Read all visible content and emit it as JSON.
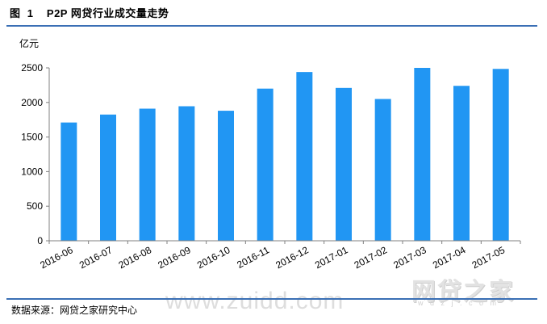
{
  "header": {
    "figure_title": "图  1    P2P 网贷行业成交量走势"
  },
  "footer": {
    "source": "数据来源：网贷之家研究中心"
  },
  "watermark": {
    "text": "www.zuidd.com"
  },
  "logo": {
    "main": "网贷之家",
    "sub": "w d z j . c o m"
  },
  "colors": {
    "bar": "#2196f3",
    "rule": "#3a6fb5",
    "axis": "#808080"
  },
  "chart_data": {
    "type": "bar",
    "title": "",
    "xlabel": "",
    "ylabel": "亿元",
    "categories": [
      "2016-06",
      "2016-07",
      "2016-08",
      "2016-09",
      "2016-10",
      "2016-11",
      "2016-12",
      "2017-01",
      "2017-02",
      "2017-03",
      "2017-04",
      "2017-05"
    ],
    "values": [
      1710,
      1825,
      1910,
      1945,
      1880,
      2200,
      2440,
      2210,
      2050,
      2500,
      2240,
      2485
    ],
    "ylim": [
      0,
      2500
    ],
    "yticks": [
      0,
      500,
      1000,
      1500,
      2000,
      2500
    ],
    "grid": false,
    "legend": "none"
  }
}
